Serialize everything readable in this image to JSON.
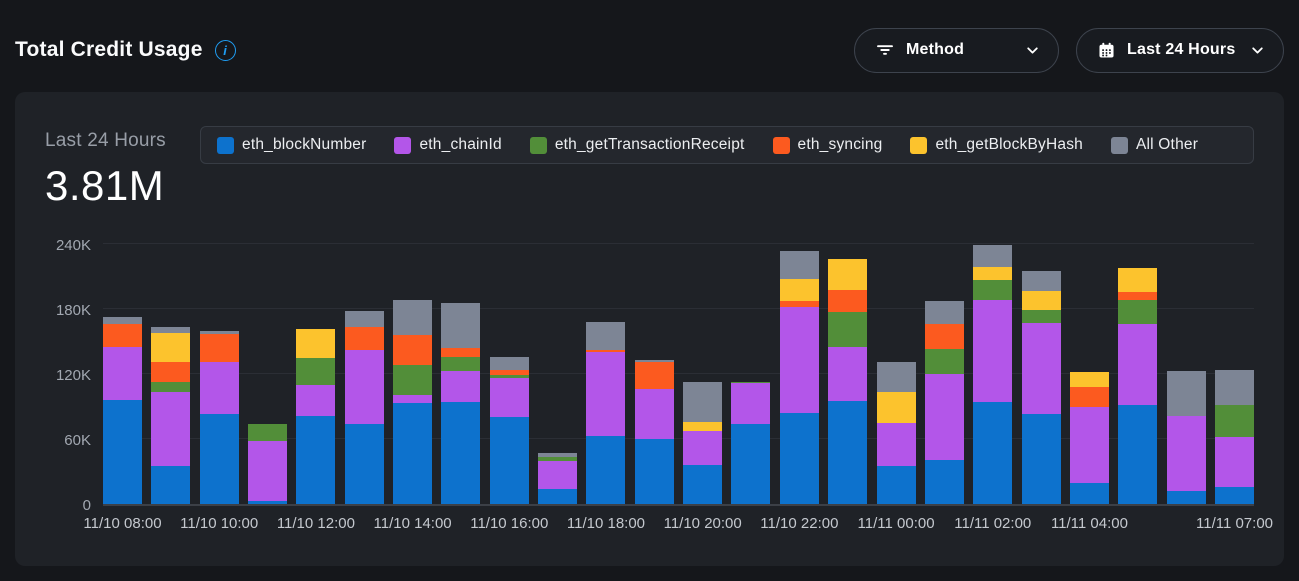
{
  "header": {
    "title": "Total Credit Usage",
    "method_filter": {
      "label": "Method"
    },
    "time_filter": {
      "label": "Last 24 Hours"
    }
  },
  "panel": {
    "period_label": "Last 24 Hours",
    "total_value": "3.81M"
  },
  "colors": {
    "page_bg": "#15171b",
    "card_bg": "#1f2227",
    "legend_bg": "#24272d",
    "accent_info": "#1f9df2",
    "gridline": "#2b2e35",
    "series_blue": "#0d72cd",
    "series_purple": "#b356e9",
    "series_green": "#528e39",
    "series_orange": "#fc5a1f",
    "series_yellow": "#fcc32d",
    "series_gray": "#7d8595"
  },
  "chart_data": {
    "type": "bar",
    "stacked": true,
    "title": "Total Credit Usage",
    "subtitle": "Last 24 Hours",
    "total_label": "3.81M",
    "values_unit": "thousands of credits (K)",
    "ylim_k": [
      0,
      240
    ],
    "grid": true,
    "legend_position": "top",
    "x": [
      "11/10 08:00",
      "11/10 09:00",
      "11/10 10:00",
      "11/10 11:00",
      "11/10 12:00",
      "11/10 13:00",
      "11/10 14:00",
      "11/10 15:00",
      "11/10 16:00",
      "11/10 17:00",
      "11/10 18:00",
      "11/10 19:00",
      "11/10 20:00",
      "11/10 21:00",
      "11/10 22:00",
      "11/10 23:00",
      "11/11 00:00",
      "11/11 01:00",
      "11/11 02:00",
      "11/11 03:00",
      "11/11 04:00",
      "11/11 05:00",
      "11/11 06:00",
      "11/11 07:00"
    ],
    "xticks": [
      {
        "i": 0,
        "label": "11/10 08:00"
      },
      {
        "i": 2,
        "label": "11/10 10:00"
      },
      {
        "i": 4,
        "label": "11/10 12:00"
      },
      {
        "i": 6,
        "label": "11/10 14:00"
      },
      {
        "i": 8,
        "label": "11/10 16:00"
      },
      {
        "i": 10,
        "label": "11/10 18:00"
      },
      {
        "i": 12,
        "label": "11/10 20:00"
      },
      {
        "i": 14,
        "label": "11/10 22:00"
      },
      {
        "i": 16,
        "label": "11/11 00:00"
      },
      {
        "i": 18,
        "label": "11/11 02:00"
      },
      {
        "i": 20,
        "label": "11/11 04:00"
      },
      {
        "i": 23,
        "label": "11/11 07:00"
      }
    ],
    "yticks": [
      {
        "value_k": 0,
        "label": "0"
      },
      {
        "value_k": 60,
        "label": "60K"
      },
      {
        "value_k": 120,
        "label": "120K"
      },
      {
        "value_k": 180,
        "label": "180K"
      },
      {
        "value_k": 240,
        "label": "240K"
      }
    ],
    "series": [
      {
        "name": "eth_blockNumber",
        "color": "#0d72cd",
        "values_k": [
          96,
          35,
          83,
          3,
          81,
          74,
          93,
          94,
          80,
          14,
          63,
          60,
          36,
          74,
          84,
          95,
          35,
          41,
          94,
          83,
          19,
          91,
          12,
          16
        ]
      },
      {
        "name": "eth_chainId",
        "color": "#b356e9",
        "values_k": [
          49,
          68,
          48,
          55,
          29,
          68,
          8,
          29,
          36,
          26,
          77,
          46,
          31,
          38,
          98,
          50,
          40,
          79,
          94,
          84,
          71,
          75,
          69,
          46
        ]
      },
      {
        "name": "eth_getTransactionReceipt",
        "color": "#528e39",
        "values_k": [
          0,
          10,
          0,
          16,
          25,
          0,
          27,
          13,
          3,
          3,
          0,
          0,
          0,
          1,
          0,
          32,
          0,
          23,
          19,
          12,
          0,
          22,
          0,
          29
        ]
      },
      {
        "name": "eth_syncing",
        "color": "#fc5a1f",
        "values_k": [
          21,
          18,
          26,
          0,
          0,
          21,
          28,
          8,
          5,
          0,
          2,
          25,
          0,
          0,
          5,
          21,
          0,
          23,
          0,
          0,
          18,
          8,
          0,
          0
        ]
      },
      {
        "name": "eth_getBlockByHash",
        "color": "#fcc32d",
        "values_k": [
          0,
          27,
          0,
          0,
          27,
          0,
          0,
          0,
          0,
          0,
          0,
          0,
          9,
          0,
          21,
          28,
          28,
          0,
          12,
          18,
          14,
          22,
          0,
          0
        ]
      },
      {
        "name": "All Other",
        "color": "#7d8595",
        "values_k": [
          7,
          5,
          3,
          0,
          0,
          15,
          32,
          42,
          12,
          4,
          26,
          2,
          37,
          0,
          26,
          0,
          28,
          21,
          20,
          18,
          0,
          0,
          42,
          33
        ]
      }
    ],
    "totals_k": [
      173,
      163,
      160,
      74,
      162,
      178,
      188,
      186,
      136,
      47,
      168,
      133,
      113,
      113,
      234,
      226,
      131,
      187,
      239,
      215,
      122,
      218,
      123,
      124
    ]
  }
}
